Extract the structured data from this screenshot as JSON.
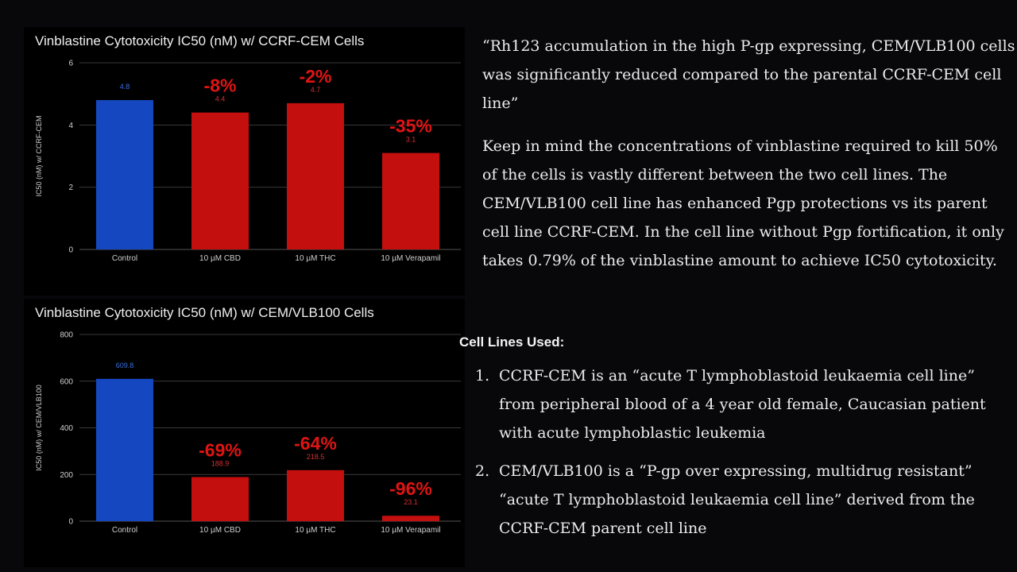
{
  "colors": {
    "control": "#1547c0",
    "treatment": "#c40f0f",
    "pct_label": "#e01414",
    "grid": "#3a3a3a",
    "axis_text": "#cfcfcf"
  },
  "chart_data": [
    {
      "type": "bar",
      "title": "Vinblastine Cytotoxicity IC50 (nM) w/ CCRF-CEM Cells",
      "ylabel": "IC50 (nM) w/ CCRF-CEM",
      "xlabel": "",
      "categories": [
        "Control",
        "10 µM CBD",
        "10 µM THC",
        "10 µM Verapamil"
      ],
      "values": [
        4.8,
        4.4,
        4.7,
        3.1
      ],
      "data_labels": [
        "4.8",
        "4.4",
        "4.7",
        "3.1"
      ],
      "annotations": [
        "",
        "-8%",
        "-2%",
        "-35%"
      ],
      "ylim": [
        0,
        6
      ],
      "yticks": [
        0,
        2,
        4,
        6
      ],
      "grid": true,
      "legend": "none"
    },
    {
      "type": "bar",
      "title": "Vinblastine Cytotoxicity IC50 (nM) w/ CEM/VLB100 Cells",
      "ylabel": "IC50 (nM) w/ CEM/VLB100",
      "xlabel": "",
      "categories": [
        "Control",
        "10 µM CBD",
        "10 µM THC",
        "10 µM Verapamil"
      ],
      "values": [
        609.8,
        188.9,
        218.5,
        23.1
      ],
      "data_labels": [
        "609.8",
        "188.9",
        "218.5",
        "23.1"
      ],
      "annotations": [
        "",
        "-69%",
        "-64%",
        "-96%"
      ],
      "ylim": [
        0,
        800
      ],
      "yticks": [
        0,
        200,
        400,
        600,
        800
      ],
      "grid": true,
      "legend": "none"
    }
  ],
  "text": {
    "quote": "“Rh123 accumulation in the high P-gp expressing, CEM/VLB100 cells was significantly reduced compared to the parental CCRF-CEM cell line”",
    "note": "Keep in mind the concentrations of vinblastine required to kill 50% of the cells is vastly different between the two cell lines. The CEM/VLB100 cell line has enhanced Pgp protections vs its parent cell line CCRF-CEM. In the cell line without Pgp fortification, it only takes 0.79% of the vinblastine amount to achieve IC50 cytotoxicity.",
    "cell_lines_heading": "Cell Lines Used:",
    "cell_lines": [
      {
        "num": "1.",
        "text": "CCRF-CEM is an “acute T lymphoblastoid leukaemia cell line” from peripheral blood of a 4 year old female, Caucasian patient with acute lymphoblastic leukemia"
      },
      {
        "num": "2.",
        "text": "CEM/VLB100 is a “P-gp over expressing, multidrug resistant” “acute T lymphoblastoid leukaemia cell line” derived from the CCRF-CEM parent cell line"
      }
    ]
  }
}
